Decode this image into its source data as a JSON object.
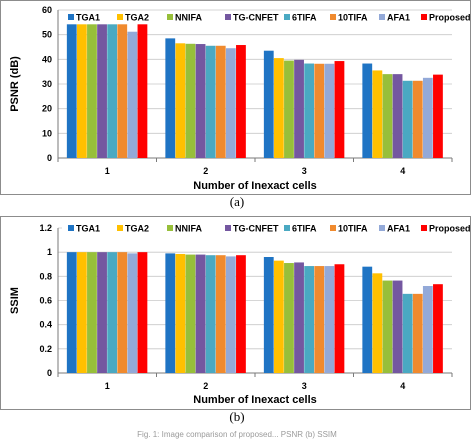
{
  "series_names": [
    "TGA1",
    "TGA2",
    "NNIFA",
    "TG-CNFET",
    "6TIFA",
    "10TIFA",
    "AFA1",
    "Proposed"
  ],
  "colors": [
    "#1f74c4",
    "#ffc000",
    "#97bf3a",
    "#7457a0",
    "#4aa9c2",
    "#f08a2e",
    "#93a9d8",
    "#ff0000"
  ],
  "chart_data": [
    {
      "type": "bar",
      "title": "",
      "xlabel": "Number of Inexact cells",
      "ylabel": "PSNR (dB)",
      "categories": [
        "1",
        "2",
        "3",
        "4"
      ],
      "ylim": [
        0,
        60
      ],
      "yticks": [
        0,
        10,
        20,
        30,
        40,
        50,
        60
      ],
      "legend": "top",
      "grid": true,
      "caption": "(a)",
      "series": [
        {
          "name": "TGA1",
          "values": [
            54.2,
            48.5,
            43.5,
            38.3
          ]
        },
        {
          "name": "TGA2",
          "values": [
            54.2,
            46.5,
            40.5,
            35.5
          ]
        },
        {
          "name": "NNIFA",
          "values": [
            54.2,
            46.3,
            39.5,
            34.0
          ]
        },
        {
          "name": "TG-CNFET",
          "values": [
            54.2,
            46.2,
            39.8,
            34.0
          ]
        },
        {
          "name": "6TIFA",
          "values": [
            54.2,
            45.5,
            38.3,
            31.3
          ]
        },
        {
          "name": "10TIFA",
          "values": [
            54.2,
            45.5,
            38.2,
            31.3
          ]
        },
        {
          "name": "AFA1",
          "values": [
            51.2,
            44.5,
            38.2,
            32.5
          ]
        },
        {
          "name": "Proposed",
          "values": [
            54.2,
            45.8,
            39.3,
            33.8
          ]
        }
      ]
    },
    {
      "type": "bar",
      "title": "",
      "xlabel": "Number of Inexact cells",
      "ylabel": "SSIM",
      "categories": [
        "1",
        "2",
        "3",
        "4"
      ],
      "ylim": [
        0,
        1.2
      ],
      "yticks": [
        "0",
        "0.2",
        "0.4",
        "0.6",
        "0.8",
        "1",
        "1.2"
      ],
      "legend": "top",
      "grid": true,
      "caption": "(b)",
      "series": [
        {
          "name": "TGA1",
          "values": [
            1.0,
            0.99,
            0.96,
            0.88
          ]
        },
        {
          "name": "TGA2",
          "values": [
            1.0,
            0.985,
            0.93,
            0.825
          ]
        },
        {
          "name": "NNIFA",
          "values": [
            1.0,
            0.98,
            0.91,
            0.765
          ]
        },
        {
          "name": "TG-CNFET",
          "values": [
            1.0,
            0.98,
            0.915,
            0.765
          ]
        },
        {
          "name": "6TIFA",
          "values": [
            1.0,
            0.975,
            0.885,
            0.655
          ]
        },
        {
          "name": "10TIFA",
          "values": [
            1.0,
            0.975,
            0.885,
            0.655
          ]
        },
        {
          "name": "AFA1",
          "values": [
            0.99,
            0.965,
            0.885,
            0.72
          ]
        },
        {
          "name": "Proposed",
          "values": [
            1.0,
            0.975,
            0.9,
            0.735
          ]
        }
      ]
    }
  ],
  "footer_text": "Fig. 1: Image comparison of proposed... PSNR (b) SSIM"
}
